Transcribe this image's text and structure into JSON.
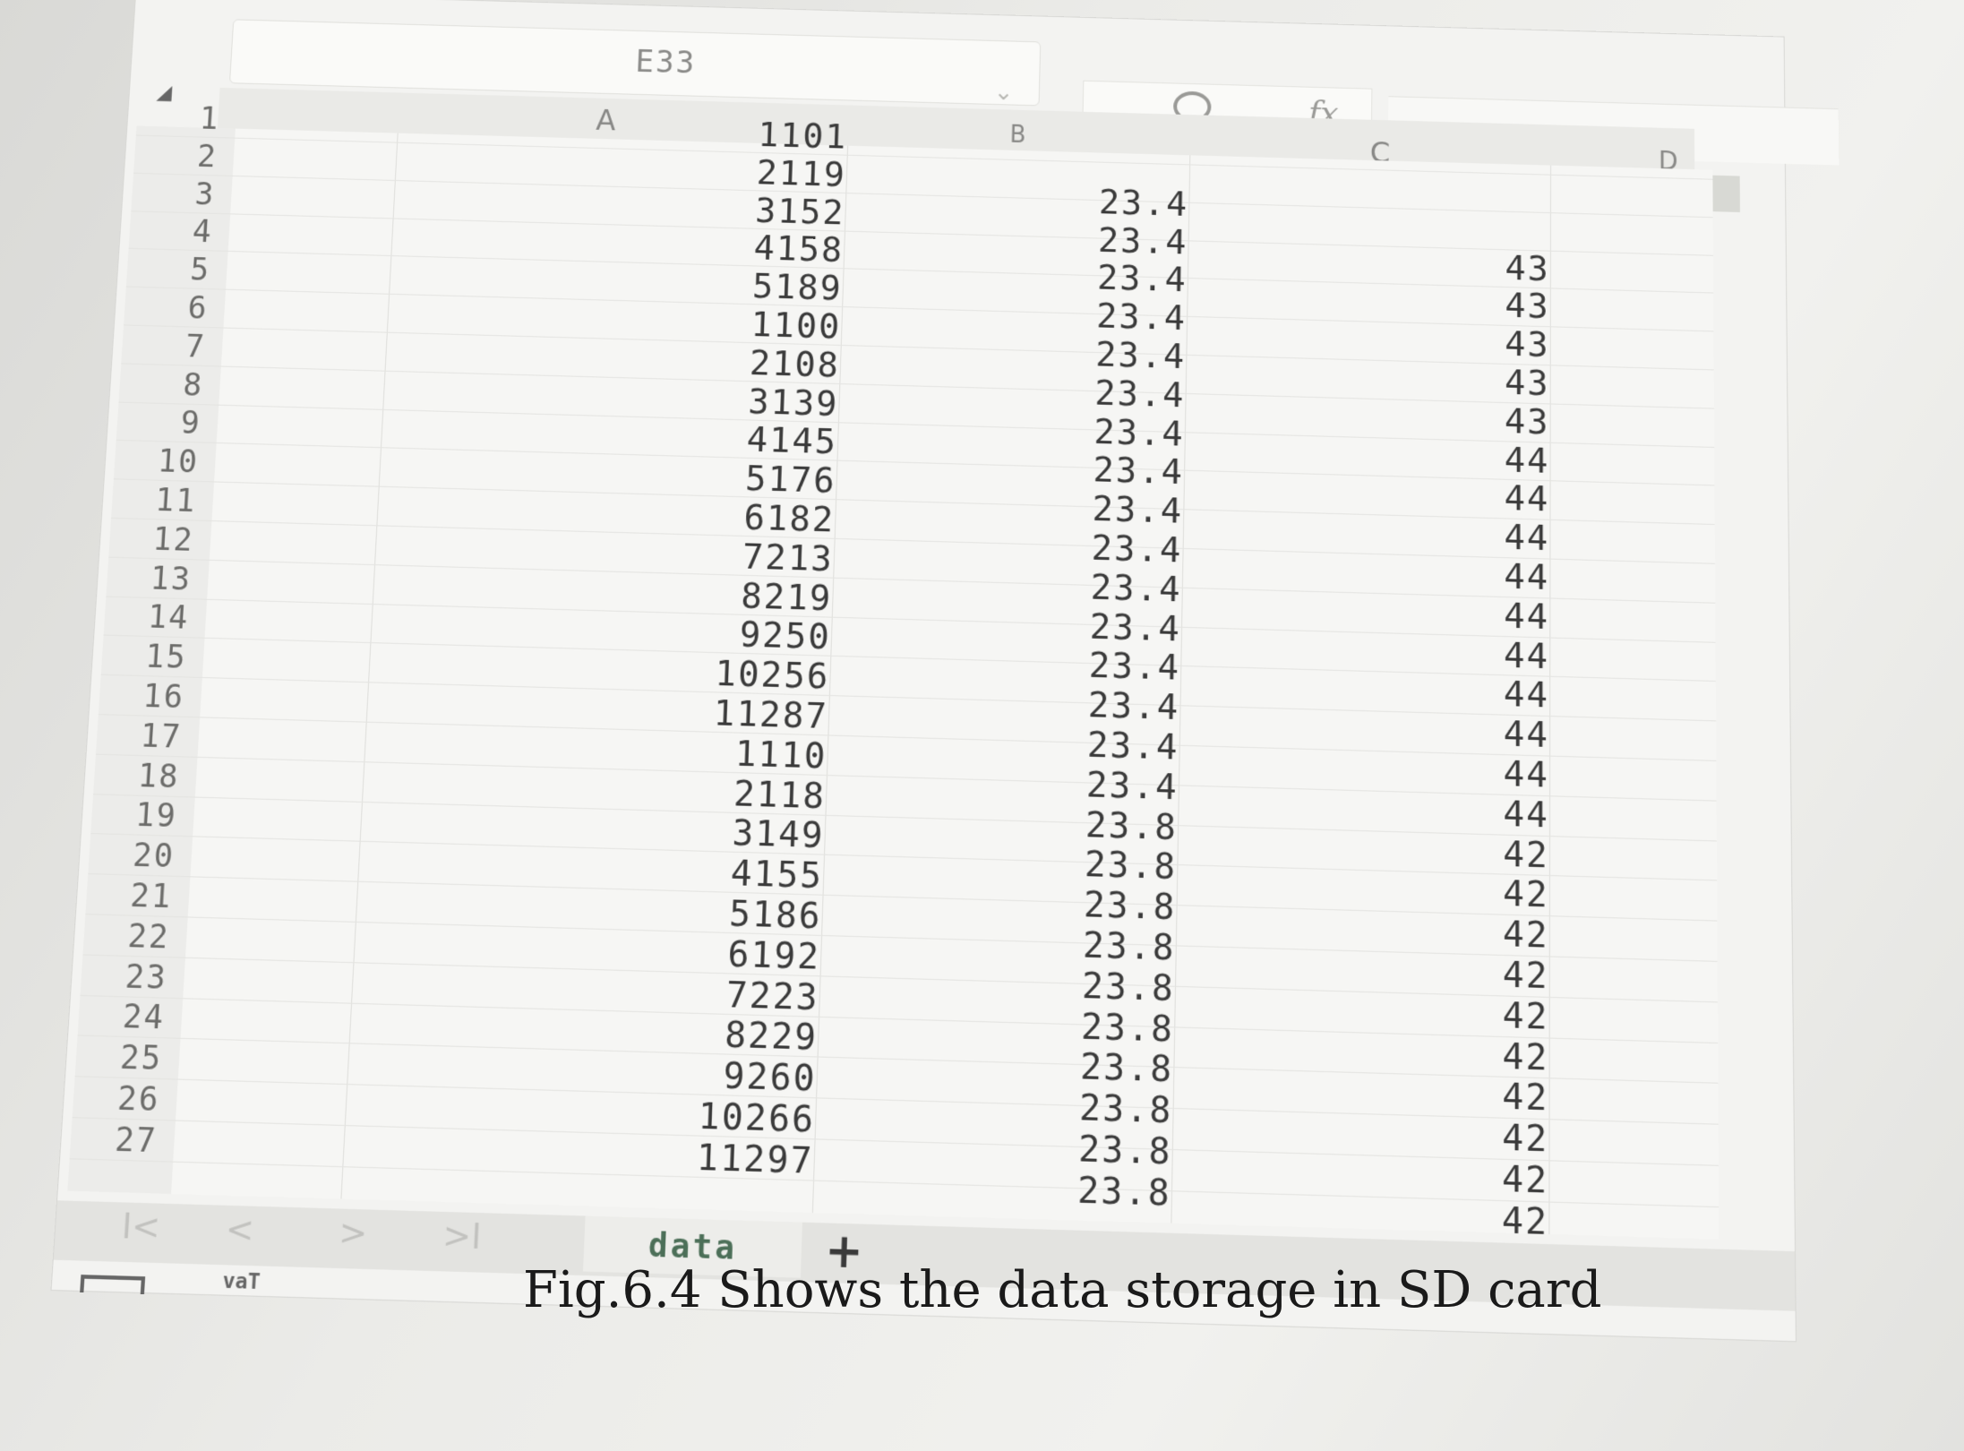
{
  "name_box": {
    "cell_ref": "E33"
  },
  "formula_bar": {
    "zoom_icon": "zoom-icon",
    "fx_label": "fx"
  },
  "columns": [
    "A",
    "B",
    "C",
    "D"
  ],
  "rows": [
    {
      "n": "1",
      "a": "1101",
      "b": "",
      "c": ""
    },
    {
      "n": "2",
      "a": "2119",
      "b": "23.4",
      "c": ""
    },
    {
      "n": "3",
      "a": "3152",
      "b": "23.4",
      "c": "43"
    },
    {
      "n": "4",
      "a": "4158",
      "b": "23.4",
      "c": "43"
    },
    {
      "n": "5",
      "a": "5189",
      "b": "23.4",
      "c": "43"
    },
    {
      "n": "6",
      "a": "1100",
      "b": "23.4",
      "c": "43"
    },
    {
      "n": "7",
      "a": "2108",
      "b": "23.4",
      "c": "43"
    },
    {
      "n": "8",
      "a": "3139",
      "b": "23.4",
      "c": "44"
    },
    {
      "n": "9",
      "a": "4145",
      "b": "23.4",
      "c": "44"
    },
    {
      "n": "10",
      "a": "5176",
      "b": "23.4",
      "c": "44"
    },
    {
      "n": "11",
      "a": "6182",
      "b": "23.4",
      "c": "44"
    },
    {
      "n": "12",
      "a": "7213",
      "b": "23.4",
      "c": "44"
    },
    {
      "n": "13",
      "a": "8219",
      "b": "23.4",
      "c": "44"
    },
    {
      "n": "14",
      "a": "9250",
      "b": "23.4",
      "c": "44"
    },
    {
      "n": "15",
      "a": "10256",
      "b": "23.4",
      "c": "44"
    },
    {
      "n": "16",
      "a": "11287",
      "b": "23.4",
      "c": "44"
    },
    {
      "n": "17",
      "a": "1110",
      "b": "23.4",
      "c": "44"
    },
    {
      "n": "18",
      "a": "2118",
      "b": "23.8",
      "c": "42"
    },
    {
      "n": "19",
      "a": "3149",
      "b": "23.8",
      "c": "42"
    },
    {
      "n": "20",
      "a": "4155",
      "b": "23.8",
      "c": "42"
    },
    {
      "n": "21",
      "a": "5186",
      "b": "23.8",
      "c": "42"
    },
    {
      "n": "22",
      "a": "6192",
      "b": "23.8",
      "c": "42"
    },
    {
      "n": "23",
      "a": "7223",
      "b": "23.8",
      "c": "42"
    },
    {
      "n": "24",
      "a": "8229",
      "b": "23.8",
      "c": "42"
    },
    {
      "n": "25",
      "a": "9260",
      "b": "23.8",
      "c": "42"
    },
    {
      "n": "26",
      "a": "10266",
      "b": "23.8",
      "c": "42"
    },
    {
      "n": "27",
      "a": "11297",
      "b": "23.8",
      "c": "42"
    }
  ],
  "tabs": {
    "nav": {
      "first": "I<",
      "prev": "<",
      "next": ">",
      "last": ">I"
    },
    "sheet_name": "data",
    "add_label": "+"
  },
  "status": {
    "text": "vaT"
  },
  "caption": "Fig.6.4 Shows the data storage in SD card"
}
